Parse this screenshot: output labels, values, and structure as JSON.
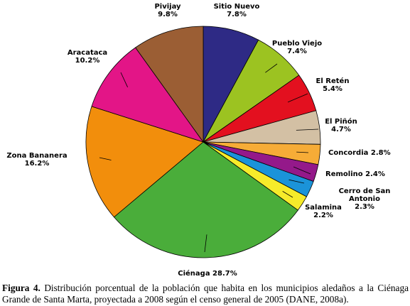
{
  "chart_data": {
    "type": "pie",
    "title": "",
    "slices": [
      {
        "label": "Sitio Nuevo",
        "value": 7.8,
        "value_text": "7.8%",
        "color": "#2e2a85"
      },
      {
        "label": "Pueblo Viejo",
        "value": 7.4,
        "value_text": "7.4%",
        "color": "#9cc321"
      },
      {
        "label": "El Retén",
        "value": 5.4,
        "value_text": "5.4%",
        "color": "#e3101f"
      },
      {
        "label": "El Piñón",
        "value": 4.7,
        "value_text": "4.7%",
        "color": "#d3c0a4"
      },
      {
        "label": "Concordia",
        "value": 2.8,
        "value_text": "2.8%",
        "color": "#f6ac37"
      },
      {
        "label": "Remolino",
        "value": 2.4,
        "value_text": "2.4%",
        "color": "#94198a"
      },
      {
        "label": "Cerro de San Antonio",
        "value": 2.3,
        "value_text": "2.3%",
        "color": "#1b93d9"
      },
      {
        "label": "Salamina",
        "value": 2.2,
        "value_text": "2.2%",
        "color": "#f6eb2a"
      },
      {
        "label": "Ciénaga",
        "value": 28.7,
        "value_text": "28.7%",
        "color": "#4aad3a"
      },
      {
        "label": "Zona Bananera",
        "value": 16.2,
        "value_text": "16.2%",
        "color": "#f28e0c"
      },
      {
        "label": "Aracataca",
        "value": 10.2,
        "value_text": "10.2%",
        "color": "#e31587"
      },
      {
        "label": "Pivijay",
        "value": 9.8,
        "value_text": "9.8%",
        "color": "#9b5e34"
      }
    ],
    "start_angle_deg": 0,
    "direction": "clockwise",
    "legend": "none"
  },
  "caption": {
    "label": "Figura 4.",
    "text": " Distribución porcentual de la población que habita en los municipios aledaños a la Ciénaga Grande de Santa Marta, proyectada a 2008 según el censo general de 2005 (DANE, 2008a)."
  }
}
